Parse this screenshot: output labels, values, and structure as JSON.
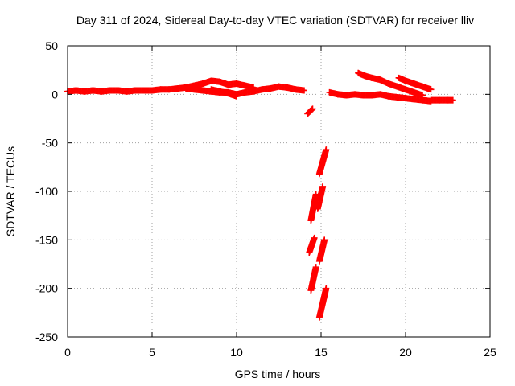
{
  "chart_data": {
    "type": "scatter",
    "title": "Day 311 of 2024, Sidereal Day-to-day VTEC variation (SDTVAR) for receiver lliv",
    "xlabel": "GPS time / hours",
    "ylabel": "SDTVAR / TECUs",
    "xlim": [
      0,
      25
    ],
    "ylim": [
      -250,
      50
    ],
    "xticks": [
      0,
      5,
      10,
      15,
      20,
      25
    ],
    "yticks": [
      -250,
      -200,
      -150,
      -100,
      -50,
      0,
      50
    ],
    "grid": true,
    "legend": "none",
    "marker": "plus",
    "color": "#ff0000",
    "series": [
      {
        "points": [
          [
            0,
            3
          ],
          [
            0.5,
            4
          ],
          [
            1,
            3
          ],
          [
            1.5,
            4
          ],
          [
            2,
            3
          ],
          [
            2.5,
            4
          ],
          [
            3,
            4
          ],
          [
            3.5,
            3
          ],
          [
            4,
            4
          ],
          [
            4.5,
            4
          ],
          [
            5,
            4
          ],
          [
            5.5,
            5
          ],
          [
            6,
            5
          ],
          [
            6.5,
            6
          ],
          [
            7,
            7
          ],
          [
            7.5,
            9
          ],
          [
            8,
            11
          ],
          [
            8.5,
            14
          ],
          [
            9,
            13
          ],
          [
            9.5,
            10
          ],
          [
            10,
            11
          ],
          [
            10.5,
            9
          ],
          [
            11,
            7
          ]
        ]
      },
      {
        "points": [
          [
            7,
            6
          ],
          [
            7.5,
            5
          ],
          [
            8,
            4
          ],
          [
            8.5,
            3
          ],
          [
            9,
            2
          ],
          [
            9.5,
            2
          ],
          [
            10,
            0
          ],
          [
            10.5,
            2
          ],
          [
            11,
            3
          ],
          [
            11.5,
            5
          ],
          [
            12,
            6
          ],
          [
            12.5,
            8
          ],
          [
            13,
            7
          ],
          [
            13.5,
            5
          ],
          [
            14,
            4
          ]
        ]
      },
      {
        "points": [
          [
            8.5,
            5
          ],
          [
            9,
            3
          ],
          [
            9.5,
            1
          ],
          [
            10,
            -2
          ]
        ]
      },
      {
        "points": [
          [
            14.2,
            -20
          ],
          [
            14.5,
            -15
          ]
        ]
      },
      {
        "points": [
          [
            15.5,
            2
          ],
          [
            16,
            0
          ],
          [
            16.5,
            -1
          ],
          [
            17,
            0
          ],
          [
            17.5,
            -1
          ],
          [
            18,
            -1
          ],
          [
            18.5,
            0
          ],
          [
            19,
            -2
          ],
          [
            19.5,
            -3
          ],
          [
            20,
            -4
          ],
          [
            20.5,
            -5
          ],
          [
            21,
            -6
          ],
          [
            21.5,
            -7
          ]
        ]
      },
      {
        "points": [
          [
            21.5,
            -6
          ],
          [
            22,
            -6
          ],
          [
            22.5,
            -6
          ],
          [
            22.8,
            -6
          ]
        ]
      },
      {
        "points": [
          [
            17.2,
            22
          ],
          [
            17.6,
            19
          ],
          [
            18,
            17
          ],
          [
            18.5,
            15
          ],
          [
            19,
            11
          ],
          [
            19.5,
            8
          ],
          [
            20,
            5
          ],
          [
            20.5,
            2
          ],
          [
            21,
            -1
          ]
        ]
      },
      {
        "points": [
          [
            19.6,
            17
          ],
          [
            20,
            14
          ],
          [
            20.5,
            11
          ],
          [
            21,
            8
          ],
          [
            21.5,
            5
          ]
        ]
      },
      {
        "points": [
          [
            14.4,
            -130
          ],
          [
            14.7,
            -103
          ]
        ]
      },
      {
        "points": [
          [
            14.3,
            -163
          ],
          [
            14.6,
            -148
          ]
        ]
      },
      {
        "points": [
          [
            14.4,
            -202
          ],
          [
            14.7,
            -178
          ]
        ]
      },
      {
        "points": [
          [
            14.8,
            -118
          ],
          [
            15.1,
            -95
          ]
        ]
      },
      {
        "points": [
          [
            14.9,
            -82
          ],
          [
            15.3,
            -57
          ]
        ]
      },
      {
        "points": [
          [
            14.9,
            -172
          ],
          [
            15.2,
            -150
          ]
        ]
      },
      {
        "points": [
          [
            14.9,
            -230
          ],
          [
            15.3,
            -200
          ]
        ]
      }
    ]
  }
}
